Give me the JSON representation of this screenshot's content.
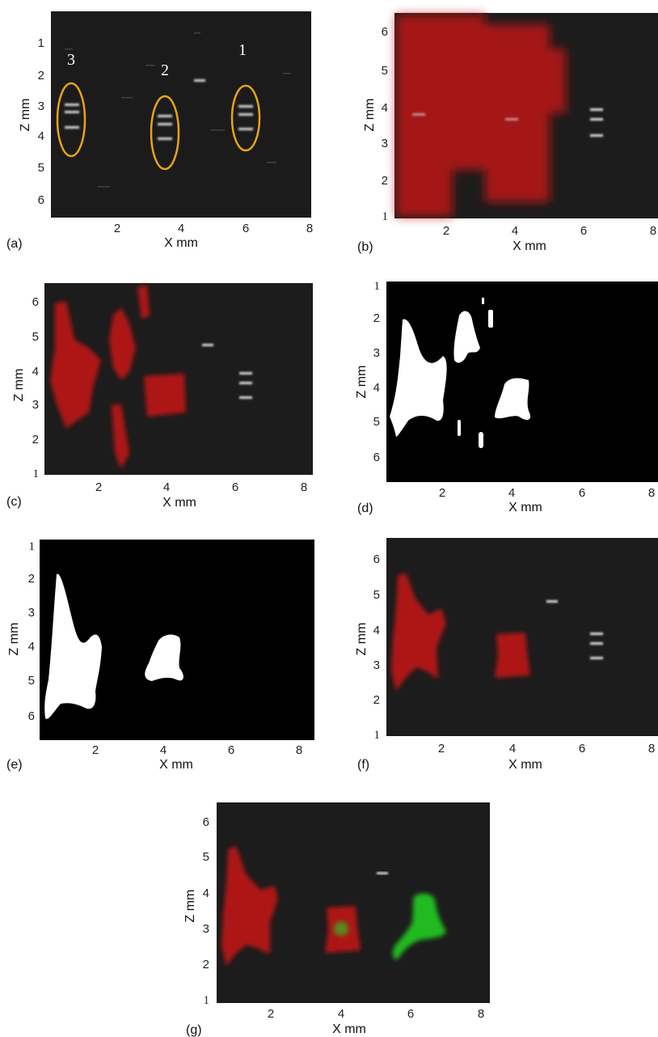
{
  "figure": {
    "panels": [
      {
        "id": "a",
        "label": "(a)",
        "xlabel": "X mm",
        "ylabel": "Z mm",
        "xticks": [
          "2",
          "4",
          "6",
          "8"
        ],
        "yticks": [
          "1",
          "2",
          "3",
          "4",
          "5",
          "6"
        ],
        "annotations": [
          "3",
          "2",
          "1"
        ],
        "background": "ultrasound-bmode"
      },
      {
        "id": "b",
        "label": "(b)",
        "xlabel": "X mm",
        "ylabel": "Z mm",
        "xticks": [
          "2",
          "4",
          "6",
          "8"
        ],
        "yticks": [
          "6",
          "5",
          "4",
          "3",
          "2",
          "1"
        ],
        "background": "ultrasound-bmode",
        "overlay": "red"
      },
      {
        "id": "c",
        "label": "(c)",
        "xlabel": "X mm",
        "ylabel": "Z mm",
        "xticks": [
          "2",
          "4",
          "6",
          "8"
        ],
        "yticks": [
          "6",
          "5",
          "4",
          "3",
          "2",
          "1"
        ],
        "background": "ultrasound-bmode",
        "overlay": "red"
      },
      {
        "id": "d",
        "label": "(d)",
        "xlabel": "X mm",
        "ylabel": "Z mm",
        "xticks": [
          "2",
          "4",
          "6",
          "8"
        ],
        "yticks": [
          "1",
          "2",
          "3",
          "4",
          "5",
          "6"
        ],
        "background": "binary-mask"
      },
      {
        "id": "e",
        "label": "(e)",
        "xlabel": "X mm",
        "ylabel": "Z mm",
        "xticks": [
          "2",
          "4",
          "6",
          "8"
        ],
        "yticks": [
          "1",
          "2",
          "3",
          "4",
          "5",
          "6"
        ],
        "background": "binary-mask"
      },
      {
        "id": "f",
        "label": "(f)",
        "xlabel": "X mm",
        "ylabel": "Z mm",
        "xticks": [
          "2",
          "4",
          "6",
          "8"
        ],
        "yticks": [
          "6",
          "5",
          "4",
          "3",
          "2",
          "1"
        ],
        "background": "ultrasound-bmode",
        "overlay": "red"
      },
      {
        "id": "g",
        "label": "(g)",
        "xlabel": "X mm",
        "ylabel": "Z mm",
        "xticks": [
          "2",
          "4",
          "6",
          "8"
        ],
        "yticks": [
          "6",
          "5",
          "4",
          "3",
          "2",
          "1"
        ],
        "background": "ultrasound-bmode",
        "overlay": "red-green"
      }
    ],
    "colors": {
      "bmode_bg": "#1c1c1c",
      "mask_bg": "#000000",
      "mask_fg": "#ffffff",
      "overlay_red": "#d01818",
      "overlay_green": "#22cc22",
      "ellipse": "#e8a317"
    }
  }
}
